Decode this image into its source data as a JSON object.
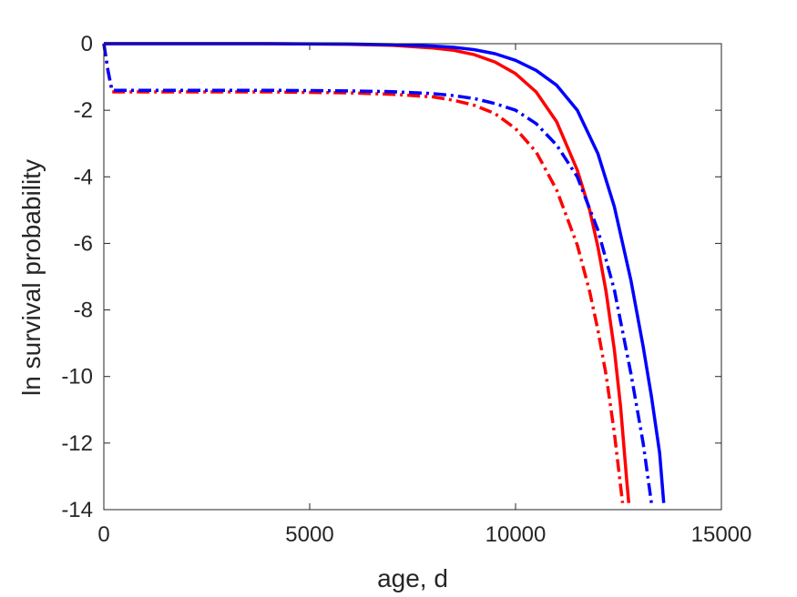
{
  "chart_data": {
    "type": "line",
    "xlabel": "age, d",
    "ylabel": "ln survival probability",
    "xlim": [
      0,
      15000
    ],
    "ylim": [
      -14,
      0
    ],
    "xticks": [
      0,
      5000,
      10000,
      15000
    ],
    "xtick_labels": [
      "0",
      "5000",
      "10000",
      "15000"
    ],
    "yticks": [
      0,
      -2,
      -4,
      -6,
      -8,
      -10,
      -12,
      -14
    ],
    "ytick_labels": [
      "0",
      "-2",
      "-4",
      "-6",
      "-8",
      "-10",
      "-12",
      "-14"
    ],
    "grid": false,
    "box": true,
    "series": [
      {
        "color": "#ff0000",
        "style": "solid",
        "x": [
          0,
          2000,
          4000,
          6000,
          7000,
          8000,
          8500,
          9000,
          9500,
          10000,
          10500,
          11000,
          11500,
          11800,
          12000,
          12200,
          12400,
          12550,
          12700,
          12750
        ],
        "y": [
          0,
          0,
          0,
          -0.02,
          -0.05,
          -0.13,
          -0.2,
          -0.33,
          -0.55,
          -0.9,
          -1.45,
          -2.35,
          -3.8,
          -5.0,
          -6.1,
          -7.45,
          -9.2,
          -10.9,
          -13.1,
          -13.8
        ]
      },
      {
        "color": "#ff0000",
        "style": "dashdot",
        "x": [
          0,
          100,
          200,
          2000,
          4000,
          6000,
          7000,
          8000,
          8500,
          9000,
          9500,
          10000,
          10500,
          11000,
          11500,
          11800,
          12000,
          12200,
          12400,
          12600
        ],
        "y": [
          0,
          -0.8,
          -1.45,
          -1.45,
          -1.45,
          -1.48,
          -1.52,
          -1.6,
          -1.7,
          -1.85,
          -2.1,
          -2.55,
          -3.25,
          -4.4,
          -6.05,
          -7.45,
          -8.6,
          -9.95,
          -11.7,
          -13.8
        ]
      },
      {
        "color": "#0000ff",
        "style": "solid",
        "x": [
          0,
          2000,
          4000,
          6000,
          7000,
          8000,
          8500,
          9000,
          9500,
          10000,
          10500,
          11000,
          11500,
          12000,
          12400,
          12800,
          13100,
          13300,
          13500,
          13600
        ],
        "y": [
          0,
          0,
          0,
          -0.01,
          -0.03,
          -0.07,
          -0.11,
          -0.18,
          -0.3,
          -0.5,
          -0.8,
          -1.25,
          -2.0,
          -3.3,
          -4.9,
          -7.1,
          -9.1,
          -10.6,
          -12.3,
          -13.8
        ]
      },
      {
        "color": "#0000ff",
        "style": "dashdot",
        "x": [
          0,
          100,
          200,
          2000,
          4000,
          6000,
          7000,
          8000,
          8500,
          9000,
          9500,
          10000,
          10500,
          11000,
          11500,
          12000,
          12400,
          12800,
          13100,
          13300
        ],
        "y": [
          0,
          -0.8,
          -1.4,
          -1.4,
          -1.4,
          -1.42,
          -1.44,
          -1.5,
          -1.56,
          -1.65,
          -1.8,
          -2.0,
          -2.4,
          -3.05,
          -4.0,
          -5.6,
          -7.4,
          -9.9,
          -12.0,
          -13.8
        ]
      }
    ]
  }
}
